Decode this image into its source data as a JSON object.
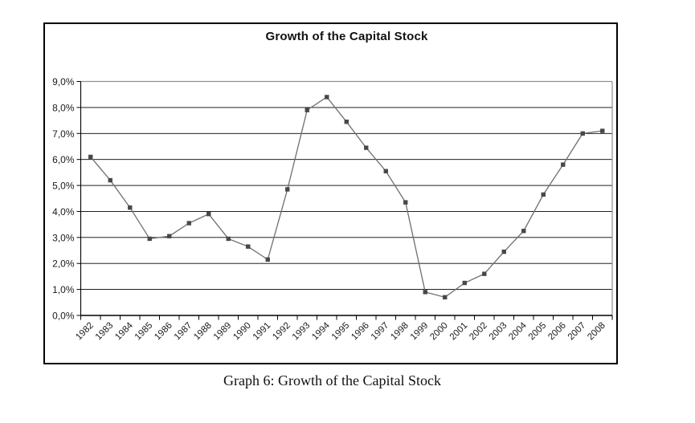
{
  "page": {
    "caption": "Graph 6: Growth of the Capital Stock"
  },
  "chart": {
    "title": "Growth of the Capital Stock"
  },
  "chart_data": {
    "type": "line",
    "title": "Growth of the Capital Stock",
    "x": [
      "1982",
      "1983",
      "1984",
      "1985",
      "1986",
      "1987",
      "1988",
      "1989",
      "1990",
      "1991",
      "1992",
      "1993",
      "1994",
      "1995",
      "1996",
      "1997",
      "1998",
      "1999",
      "2000",
      "2001",
      "2002",
      "2003",
      "2004",
      "2005",
      "2006",
      "2007",
      "2008"
    ],
    "series": [
      {
        "name": "Growth of the Capital Stock",
        "values": [
          6.1,
          5.2,
          4.15,
          2.95,
          3.05,
          3.55,
          3.9,
          2.95,
          2.65,
          2.15,
          4.85,
          7.9,
          8.4,
          7.45,
          6.45,
          5.55,
          4.35,
          0.9,
          0.7,
          1.25,
          1.6,
          2.45,
          3.25,
          4.65,
          5.8,
          7.0,
          7.1
        ]
      }
    ],
    "xlabel": "",
    "ylabel": "",
    "ylim": [
      0,
      9
    ],
    "ytick_step": 1,
    "ytick_labels": [
      "0,0%",
      "1,0%",
      "2,0%",
      "3,0%",
      "4,0%",
      "5,0%",
      "6,0%",
      "7,0%",
      "8,0%",
      "9,0%"
    ],
    "grid": true,
    "legend": false,
    "marker": "square",
    "colors": {
      "line": "#6f6f6f",
      "marker": "#484848",
      "gridline": "#000000",
      "plot_border": "#909090",
      "axis": "#000000",
      "text": "#1a1a1a",
      "frame": "#000000",
      "background": "#ffffff"
    }
  }
}
